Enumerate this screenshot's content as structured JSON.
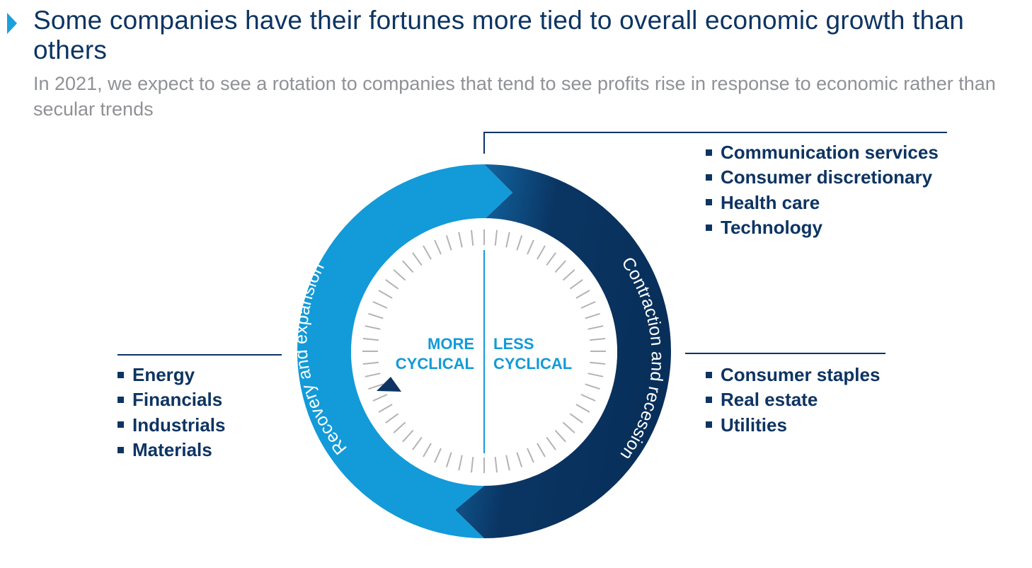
{
  "header": {
    "title": "Some companies have their fortunes more tied to overall economic growth than others",
    "subtitle": "In 2021, we expect to see a rotation to companies that tend to see profits rise in response to economic rather than secular trends"
  },
  "cycle": {
    "recovery_label": "Recovery and expansion",
    "contraction_label": "Contraction and recession",
    "more_cyclical": [
      "MORE",
      "CYCLICAL"
    ],
    "less_cyclical": [
      "LESS",
      "CYCLICAL"
    ]
  },
  "sectors": {
    "top_right": [
      "Communication services",
      "Consumer discretionary",
      "Health care",
      "Technology"
    ],
    "bottom_right": [
      "Consumer staples",
      "Real estate",
      "Utilities"
    ],
    "left": [
      "Energy",
      "Financials",
      "Industrials",
      "Materials"
    ]
  },
  "colors": {
    "light_blue": "#139ad8",
    "dark_blue": "#0a3563",
    "text_navy": "#0d3462",
    "subtitle_gray": "#8f9195",
    "tick_gray": "#b3b3b3"
  }
}
